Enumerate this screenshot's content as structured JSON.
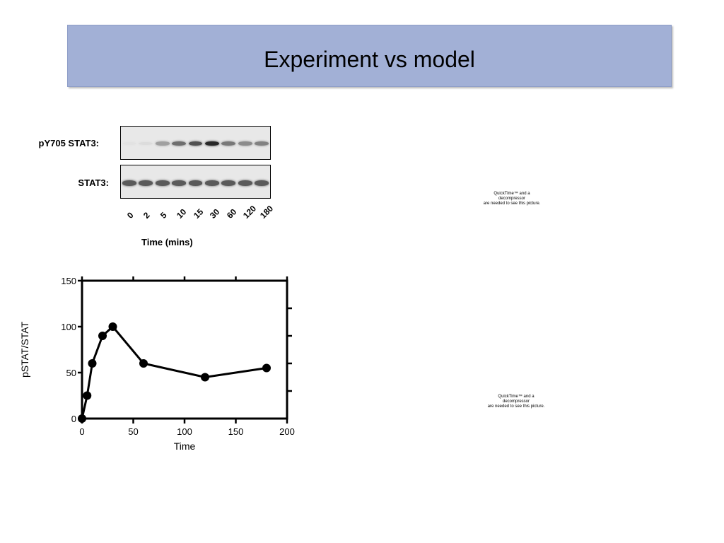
{
  "slide": {
    "title": "Experiment vs model"
  },
  "blot": {
    "row1_label": "pY705 STAT3:",
    "row2_label": "STAT3:",
    "time_labels": [
      "0",
      "2",
      "5",
      "10",
      "15",
      "30",
      "60",
      "120",
      "180"
    ],
    "axis_label": "Time (mins)",
    "phospho_intensity": [
      0.02,
      0.05,
      0.35,
      0.6,
      0.75,
      0.95,
      0.55,
      0.45,
      0.5
    ],
    "total_intensity": [
      0.7,
      0.7,
      0.7,
      0.7,
      0.7,
      0.7,
      0.7,
      0.7,
      0.7
    ]
  },
  "chart_data": {
    "type": "line",
    "x": [
      0,
      5,
      10,
      20,
      30,
      60,
      120,
      180
    ],
    "y": [
      0,
      25,
      60,
      90,
      100,
      60,
      45,
      55
    ],
    "xlabel": "Time",
    "ylabel": "pSTAT/STAT",
    "xlim": [
      0,
      200
    ],
    "ylim": [
      0,
      150
    ],
    "xticks": [
      0,
      50,
      100,
      150,
      200
    ],
    "yticks": [
      0,
      50,
      100,
      150
    ],
    "grid": false,
    "marker": "filled-circle",
    "line_color": "#000000"
  },
  "placeholders": [
    {
      "line1": "QuickTime™ and a",
      "line2": "decompressor",
      "line3": "are needed to see this picture."
    },
    {
      "line1": "QuickTime™ and a",
      "line2": "decompressor",
      "line3": "are needed to see this picture."
    }
  ]
}
